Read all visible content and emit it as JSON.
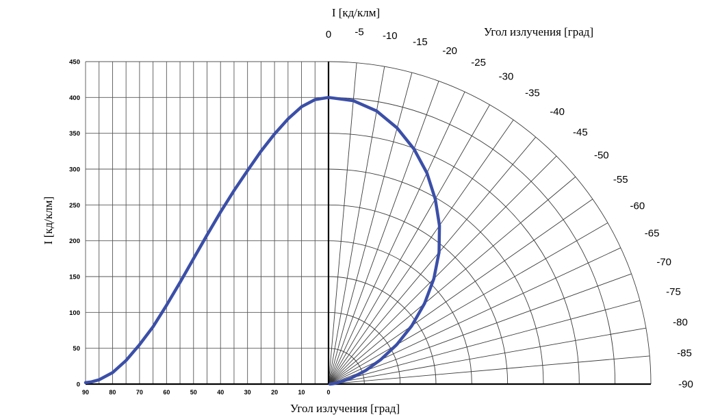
{
  "chart_data": {
    "type": "line",
    "top_label": "I [кд/клм]",
    "ylabel": "I [кд/клм]",
    "xlabel": "Угол излучения [град]",
    "polar_label": "Угол излучения [град]",
    "ylim": [
      0,
      450
    ],
    "y_ticks": [
      "0",
      "50",
      "100",
      "150",
      "200",
      "250",
      "300",
      "350",
      "400",
      "450"
    ],
    "x_ticks": [
      "90",
      "80",
      "70",
      "60",
      "50",
      "40",
      "30",
      "20",
      "10",
      "0"
    ],
    "polar_angle_ticks": [
      "0",
      "-5",
      "-10",
      "-15",
      "-20",
      "-25",
      "-30",
      "-35",
      "-40",
      "-45",
      "-50",
      "-55",
      "-60",
      "-65",
      "-70",
      "-75",
      "-80",
      "-85",
      "-90"
    ],
    "grid": true,
    "series": [
      {
        "color": "#3b4fa8",
        "x": [
          0,
          5,
          10,
          15,
          20,
          25,
          30,
          35,
          40,
          45,
          50,
          55,
          60,
          65,
          70,
          75,
          80,
          85,
          88,
          90
        ],
        "values": [
          400,
          397,
          387,
          370,
          349,
          325,
          298,
          270,
          240,
          208,
          175,
          142,
          110,
          80,
          55,
          33,
          16,
          6,
          3,
          2
        ]
      }
    ]
  }
}
